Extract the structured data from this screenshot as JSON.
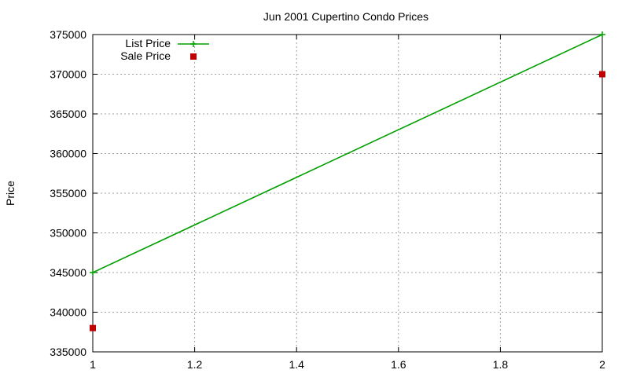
{
  "chart_data": {
    "type": "line",
    "title": "Jun 2001 Cupertino Condo Prices",
    "xlabel": "",
    "ylabel": "Price",
    "xlim": [
      1,
      2
    ],
    "ylim": [
      335000,
      375000
    ],
    "xticks": [
      "1",
      "1.2",
      "1.4",
      "1.6",
      "1.8",
      "2"
    ],
    "yticks": [
      "335000",
      "340000",
      "345000",
      "350000",
      "355000",
      "360000",
      "365000",
      "370000",
      "375000"
    ],
    "grid": true,
    "legend_position": "top-left",
    "series": [
      {
        "name": "List Price",
        "style": "linespoints",
        "color": "#00a000",
        "x": [
          1,
          2
        ],
        "y": [
          345000,
          375000
        ]
      },
      {
        "name": "Sale Price",
        "style": "points",
        "color": "#c00000",
        "x": [
          1,
          2
        ],
        "y": [
          338000,
          370000
        ]
      }
    ]
  }
}
